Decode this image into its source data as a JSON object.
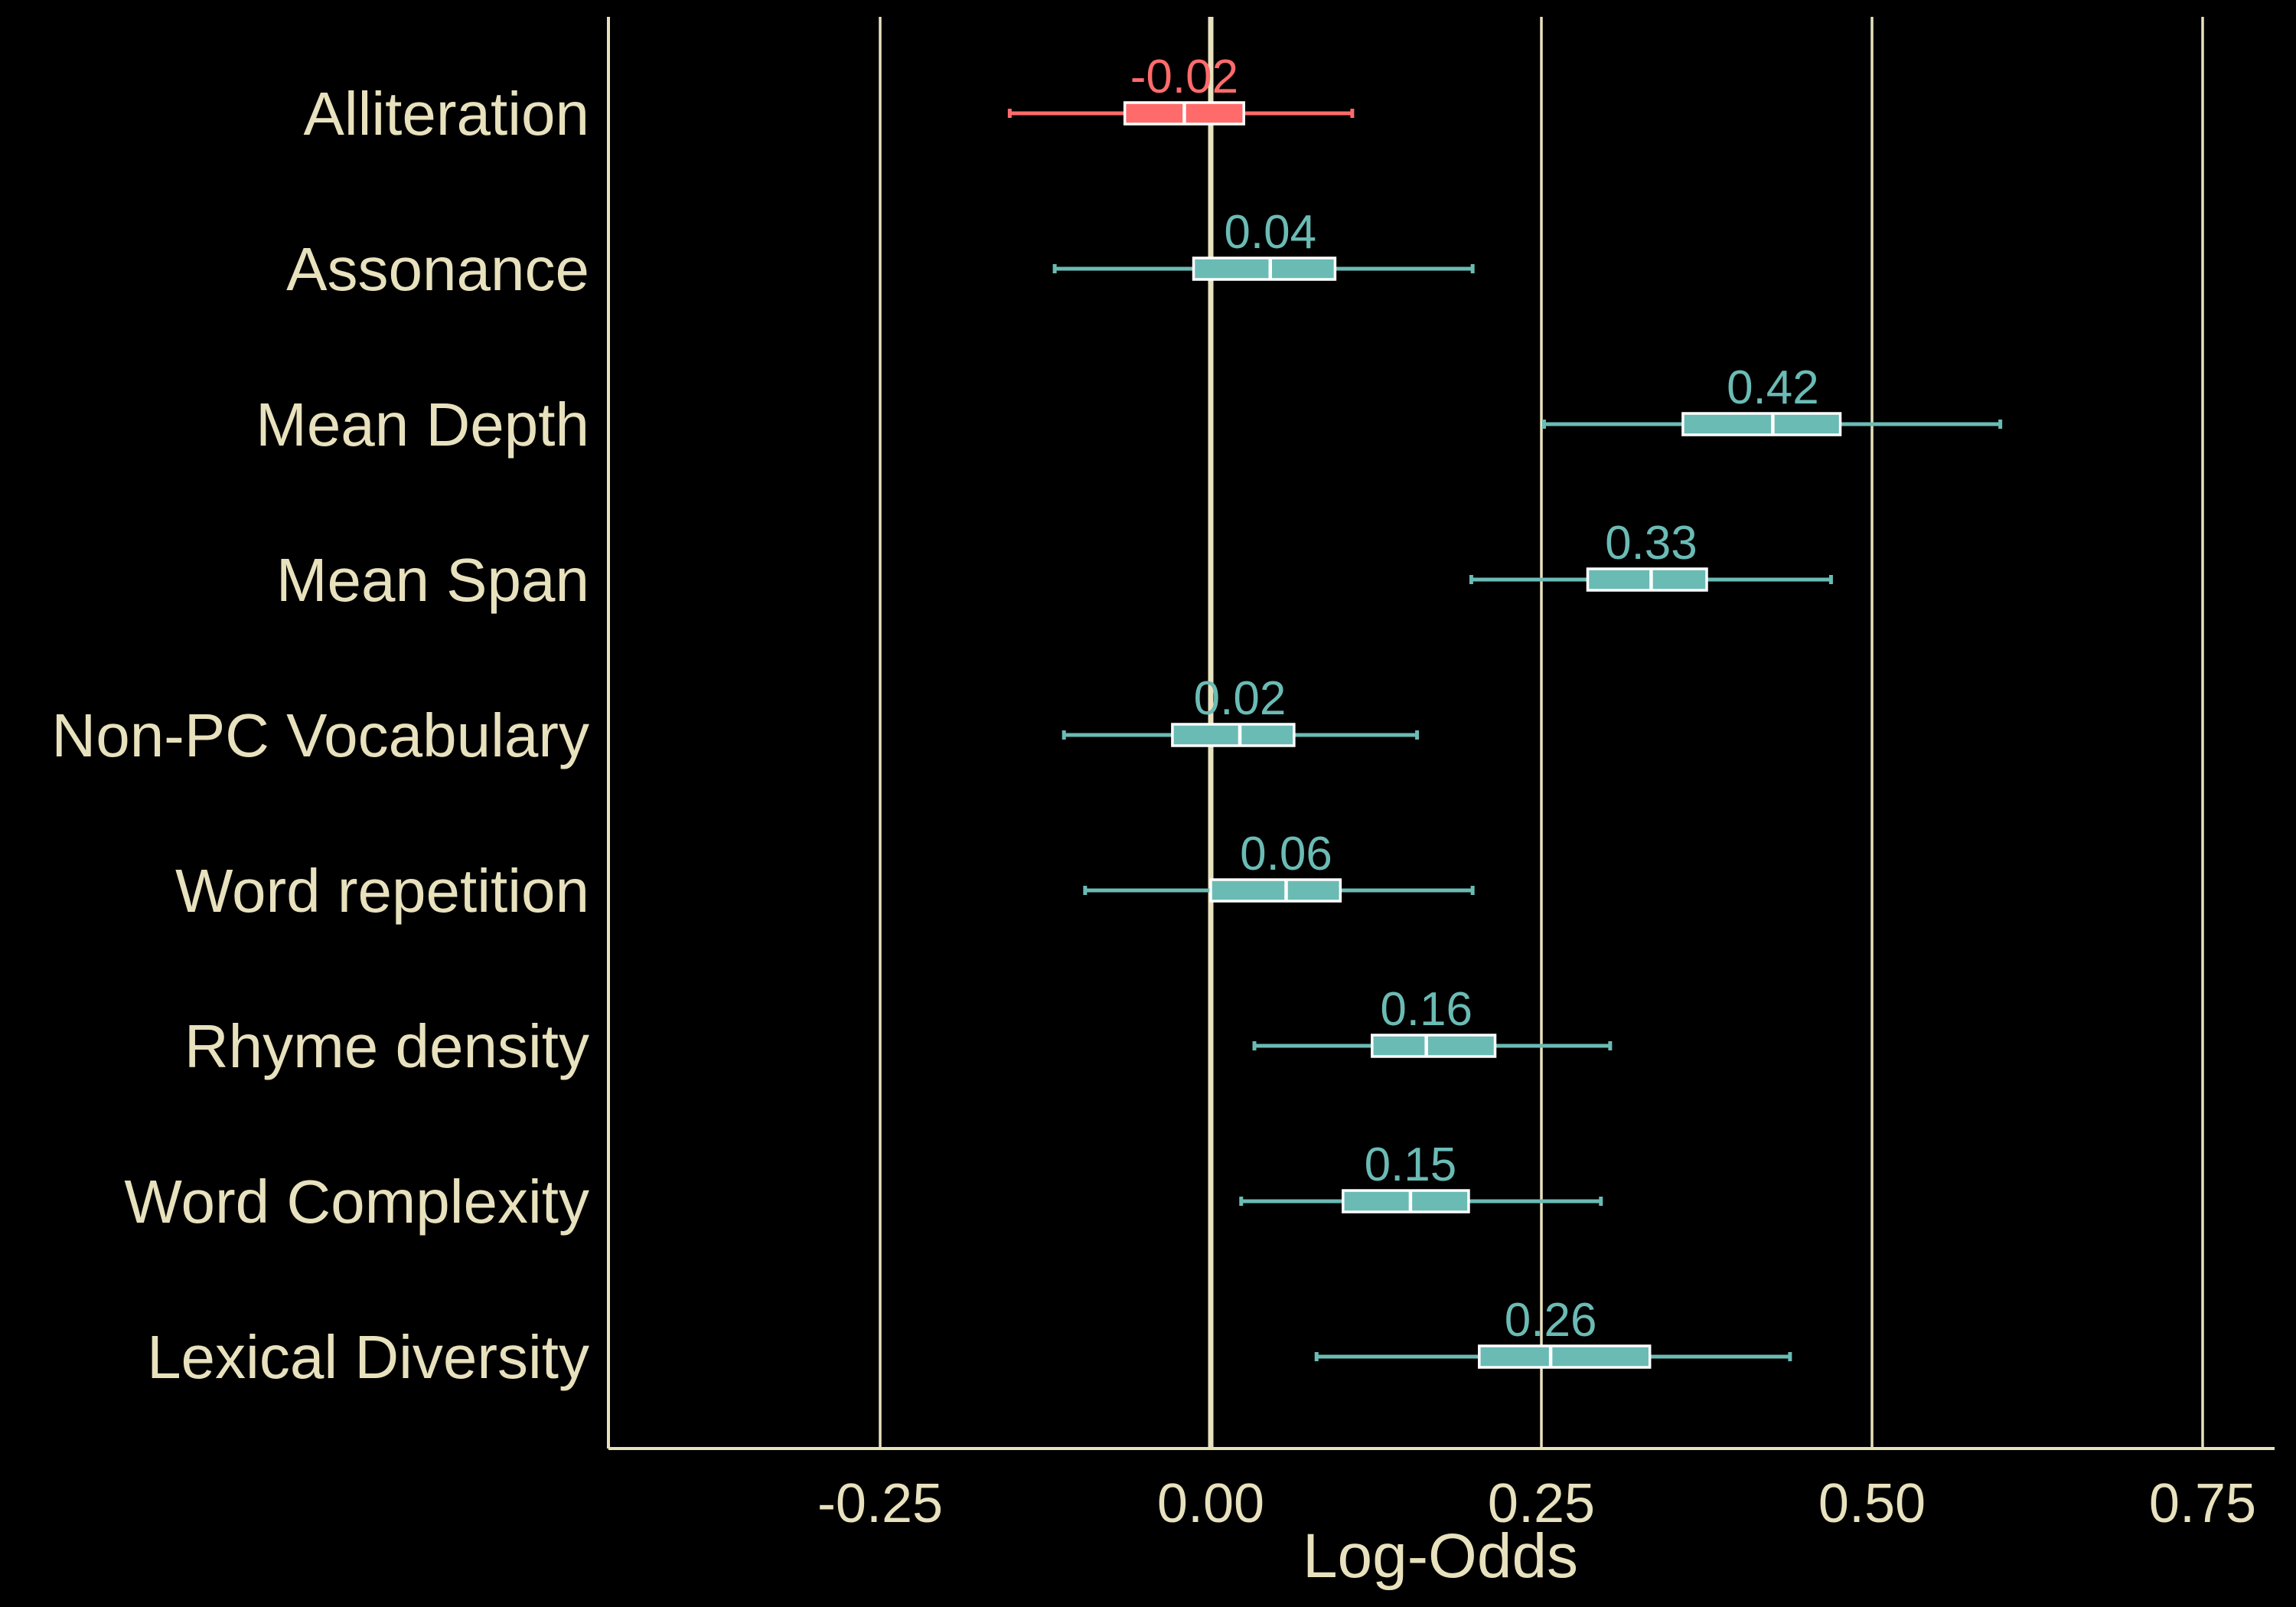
{
  "colors": {
    "background": "#000000",
    "axis": "#E8E1BD",
    "text": "#E8E1BD",
    "positive": "#6BBBB5",
    "negative": "#FF6B6B",
    "box_edge": "#FFFFFF"
  },
  "chart_data": {
    "type": "boxplot-forest",
    "title": "",
    "xlabel": "Log-Odds",
    "ylabel": "",
    "xlim": [
      -0.46,
      0.81
    ],
    "xticks": [
      -0.25,
      0.0,
      0.25,
      0.5,
      0.75
    ],
    "xtick_labels": [
      "-0.25",
      "0.00",
      "0.25",
      "0.50",
      "0.75"
    ],
    "grid": "vertical lines at x ticks",
    "reference_line": 0.0,
    "legend": "none",
    "series": [
      {
        "label": "Alliteration",
        "value_label": "-0.02",
        "median": -0.02,
        "q1": -0.065,
        "q3": 0.025,
        "whisker_low": -0.152,
        "whisker_high": 0.107,
        "sign": "negative"
      },
      {
        "label": "Assonance",
        "value_label": "0.04",
        "median": 0.045,
        "q1": -0.013,
        "q3": 0.094,
        "whisker_low": -0.118,
        "whisker_high": 0.198,
        "sign": "positive"
      },
      {
        "label": "Mean Depth",
        "value_label": "0.42",
        "median": 0.425,
        "q1": 0.357,
        "q3": 0.476,
        "whisker_low": 0.252,
        "whisker_high": 0.597,
        "sign": "positive"
      },
      {
        "label": "Mean Span",
        "value_label": "0.33",
        "median": 0.333,
        "q1": 0.285,
        "q3": 0.375,
        "whisker_low": 0.197,
        "whisker_high": 0.469,
        "sign": "positive"
      },
      {
        "label": "Non-PC Vocabulary",
        "value_label": "0.02",
        "median": 0.022,
        "q1": -0.029,
        "q3": 0.063,
        "whisker_low": -0.111,
        "whisker_high": 0.156,
        "sign": "positive"
      },
      {
        "label": "Word repetition",
        "value_label": "0.06",
        "median": 0.057,
        "q1": 0.0,
        "q3": 0.098,
        "whisker_low": -0.095,
        "whisker_high": 0.198,
        "sign": "positive"
      },
      {
        "label": "Rhyme density",
        "value_label": "0.16",
        "median": 0.163,
        "q1": 0.122,
        "q3": 0.215,
        "whisker_low": 0.033,
        "whisker_high": 0.302,
        "sign": "positive"
      },
      {
        "label": "Word Complexity",
        "value_label": "0.15",
        "median": 0.151,
        "q1": 0.1,
        "q3": 0.195,
        "whisker_low": 0.023,
        "whisker_high": 0.295,
        "sign": "positive"
      },
      {
        "label": "Lexical Diversity",
        "value_label": "0.26",
        "median": 0.257,
        "q1": 0.203,
        "q3": 0.332,
        "whisker_low": 0.08,
        "whisker_high": 0.438,
        "sign": "positive"
      }
    ]
  }
}
